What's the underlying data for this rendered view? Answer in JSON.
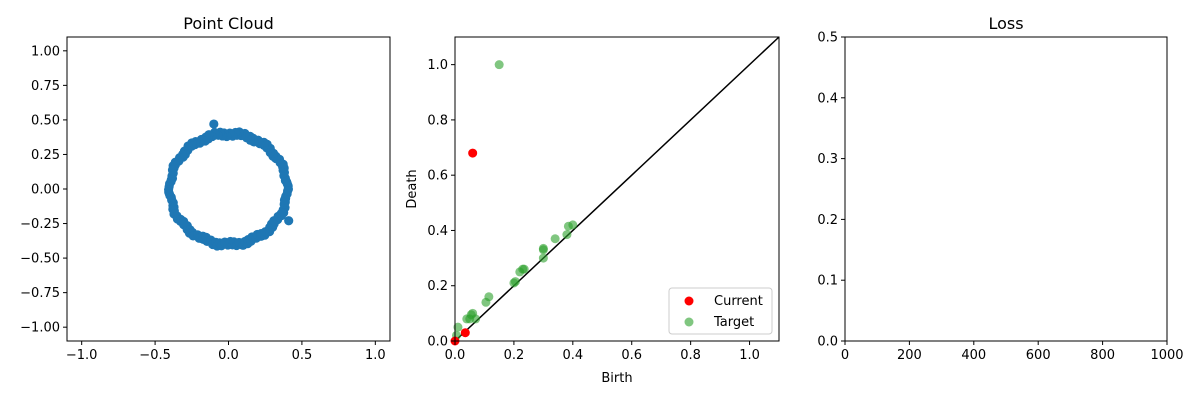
{
  "chart_data": [
    {
      "type": "scatter",
      "title": "Point Cloud",
      "xlabel": "",
      "ylabel": "",
      "xlim": [
        -1.1,
        1.1
      ],
      "ylim": [
        -1.1,
        1.1
      ],
      "xticks": [
        "−1.0",
        "−0.5",
        "0.0",
        "0.5",
        "1.0"
      ],
      "yticks": [
        "−1.00",
        "−0.75",
        "−0.50",
        "−0.25",
        "0.00",
        "0.25",
        "0.50",
        "0.75",
        "1.00"
      ],
      "grid": false,
      "color": "#1f77b4",
      "series": [
        {
          "description": "approximately 150 points on a circle of radius ~0.40 centered at origin, plus two outliers",
          "circle_radius": 0.4,
          "points": [
            [
              -0.1,
              0.47
            ],
            [
              0.41,
              -0.23
            ]
          ]
        }
      ]
    },
    {
      "type": "scatter",
      "title": "",
      "xlabel": "Birth",
      "ylabel": "Death",
      "xlim": [
        0,
        1.1
      ],
      "ylim": [
        0,
        1.1
      ],
      "xticks": [
        "0.0",
        "0.2",
        "0.4",
        "0.6",
        "0.8",
        "1.0"
      ],
      "yticks": [
        "0.0",
        "0.2",
        "0.4",
        "0.6",
        "0.8",
        "1.0"
      ],
      "diagonal": true,
      "legend_position": "lower-right",
      "series": [
        {
          "name": "Current",
          "color": "#ff0000",
          "points": [
            [
              0.06,
              0.68
            ],
            [
              0.035,
              0.03
            ],
            [
              0.0,
              0.0
            ]
          ]
        },
        {
          "name": "Target",
          "color": "#2ca02c",
          "alpha": 0.6,
          "points": [
            [
              0.15,
              1.0
            ],
            [
              0.01,
              0.05
            ],
            [
              0.005,
              0.02
            ],
            [
              0.04,
              0.08
            ],
            [
              0.05,
              0.08
            ],
            [
              0.06,
              0.1
            ],
            [
              0.055,
              0.095
            ],
            [
              0.07,
              0.08
            ],
            [
              0.105,
              0.14
            ],
            [
              0.115,
              0.16
            ],
            [
              0.2,
              0.21
            ],
            [
              0.205,
              0.215
            ],
            [
              0.22,
              0.25
            ],
            [
              0.23,
              0.26
            ],
            [
              0.235,
              0.26
            ],
            [
              0.3,
              0.3
            ],
            [
              0.3,
              0.33
            ],
            [
              0.3,
              0.335
            ],
            [
              0.34,
              0.37
            ],
            [
              0.38,
              0.385
            ],
            [
              0.385,
              0.415
            ],
            [
              0.4,
              0.42
            ]
          ]
        }
      ]
    },
    {
      "type": "line",
      "title": "Loss",
      "xlabel": "",
      "ylabel": "",
      "xlim": [
        0,
        1000
      ],
      "ylim": [
        0,
        0.5
      ],
      "xticks": [
        "0",
        "200",
        "400",
        "600",
        "800",
        "1000"
      ],
      "yticks": [
        "0.0",
        "0.1",
        "0.2",
        "0.3",
        "0.4",
        "0.5"
      ],
      "series": []
    }
  ]
}
